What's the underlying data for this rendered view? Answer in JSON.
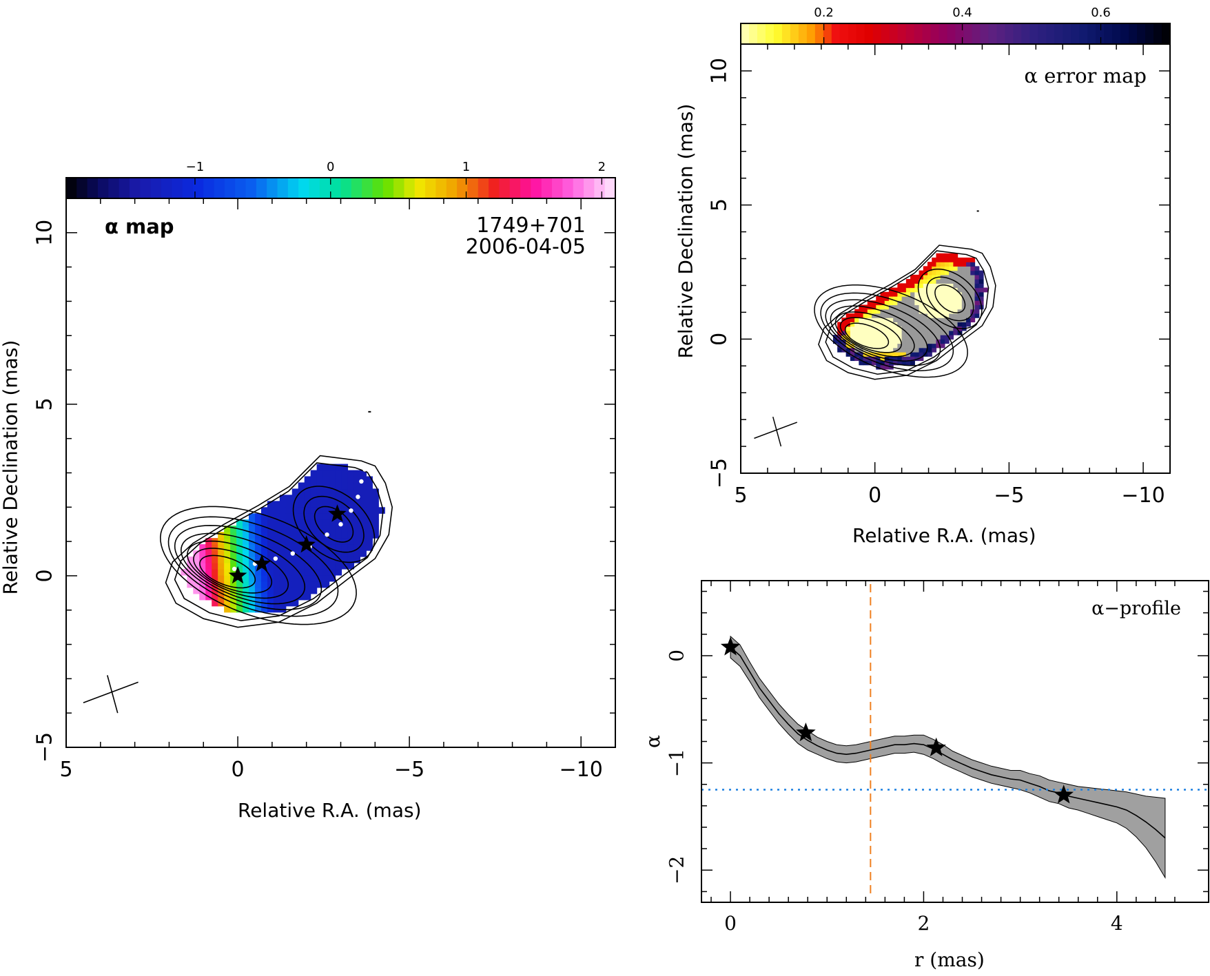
{
  "colors": {
    "axis": "#000000",
    "profile_band": "#a0a0a0",
    "dashed_line": "#f08020",
    "dotted_line": "#1a7fe0",
    "gray_mask": "#999999"
  },
  "chart_data": [
    {
      "id": "alpha_map",
      "type": "heatmap",
      "title": "α map",
      "source": "1749+701",
      "epoch": "2006-04-05",
      "xlabel": "Relative R.A. (mas)",
      "ylabel": "Relative Declination (mas)",
      "xlim": [
        5,
        -11
      ],
      "ylim": [
        -5,
        11
      ],
      "xticks": [
        5,
        0,
        -5,
        -10
      ],
      "yticks": [
        -5,
        0,
        5,
        10
      ],
      "colorbar": {
        "range": [
          -1.95,
          2.1
        ],
        "ticks": [
          -1,
          0,
          1,
          2
        ],
        "colormap": "rainbow"
      },
      "stars": [
        [
          0,
          0
        ],
        [
          -0.7,
          0.35
        ],
        [
          -2.0,
          0.9
        ],
        [
          -2.9,
          1.8
        ]
      ],
      "ridge": [
        [
          0.1,
          0.2
        ],
        [
          -0.5,
          0.35
        ],
        [
          -1.1,
          0.5
        ],
        [
          -1.6,
          0.65
        ],
        [
          -2.1,
          0.85
        ],
        [
          -2.6,
          1.2
        ],
        [
          -3.0,
          1.5
        ],
        [
          -3.3,
          1.9
        ],
        [
          -3.5,
          2.3
        ],
        [
          -3.6,
          2.75
        ],
        [
          -3.7,
          3.1
        ]
      ]
    },
    {
      "id": "alpha_error_map",
      "type": "heatmap",
      "title": "α error map",
      "xlabel": "Relative R.A. (mas)",
      "ylabel": "Relative Declination (mas)",
      "xlim": [
        5,
        -11
      ],
      "ylim": [
        -5,
        11
      ],
      "xticks": [
        5,
        0,
        -5,
        -10
      ],
      "yticks": [
        -5,
        0,
        5,
        10
      ],
      "colorbar": {
        "range": [
          0.08,
          0.7
        ],
        "ticks": [
          0.2,
          0.4,
          0.6
        ],
        "colormap": "heat"
      }
    },
    {
      "id": "alpha_profile",
      "type": "line",
      "title": "α−profile",
      "xlabel": "r (mas)",
      "ylabel": "α",
      "xlim": [
        -0.3,
        4.95
      ],
      "ylim": [
        -2.3,
        0.7
      ],
      "xticks": [
        0,
        2,
        4
      ],
      "yticks": [
        0,
        -1,
        -2
      ],
      "x": [
        0.0,
        0.1,
        0.2,
        0.3,
        0.4,
        0.5,
        0.6,
        0.7,
        0.8,
        0.9,
        1.0,
        1.1,
        1.2,
        1.3,
        1.4,
        1.5,
        1.6,
        1.7,
        1.8,
        1.9,
        2.0,
        2.1,
        2.2,
        2.3,
        2.4,
        2.5,
        2.6,
        2.7,
        2.8,
        2.9,
        3.0,
        3.1,
        3.2,
        3.3,
        3.4,
        3.5,
        3.6,
        3.7,
        3.8,
        3.9,
        4.0,
        4.1,
        4.2,
        4.3,
        4.4,
        4.5
      ],
      "y": [
        0.08,
        0.0,
        -0.15,
        -0.3,
        -0.42,
        -0.54,
        -0.64,
        -0.73,
        -0.79,
        -0.84,
        -0.88,
        -0.91,
        -0.92,
        -0.91,
        -0.89,
        -0.87,
        -0.85,
        -0.83,
        -0.83,
        -0.82,
        -0.83,
        -0.87,
        -0.92,
        -0.97,
        -1.01,
        -1.05,
        -1.08,
        -1.11,
        -1.13,
        -1.15,
        -1.16,
        -1.19,
        -1.22,
        -1.26,
        -1.28,
        -1.31,
        -1.33,
        -1.35,
        -1.37,
        -1.39,
        -1.41,
        -1.44,
        -1.49,
        -1.55,
        -1.62,
        -1.7
      ],
      "err": [
        0.1,
        0.1,
        0.09,
        0.09,
        0.09,
        0.09,
        0.09,
        0.09,
        0.09,
        0.08,
        0.08,
        0.08,
        0.08,
        0.08,
        0.08,
        0.08,
        0.08,
        0.08,
        0.08,
        0.08,
        0.09,
        0.09,
        0.09,
        0.08,
        0.08,
        0.08,
        0.08,
        0.08,
        0.08,
        0.08,
        0.09,
        0.09,
        0.1,
        0.1,
        0.1,
        0.11,
        0.11,
        0.12,
        0.13,
        0.14,
        0.15,
        0.17,
        0.2,
        0.24,
        0.3,
        0.37
      ],
      "stars": [
        [
          0.0,
          0.08
        ],
        [
          0.78,
          -0.72
        ],
        [
          2.13,
          -0.86
        ],
        [
          3.45,
          -1.3
        ]
      ],
      "vline": 1.45,
      "hline": -1.25
    }
  ]
}
